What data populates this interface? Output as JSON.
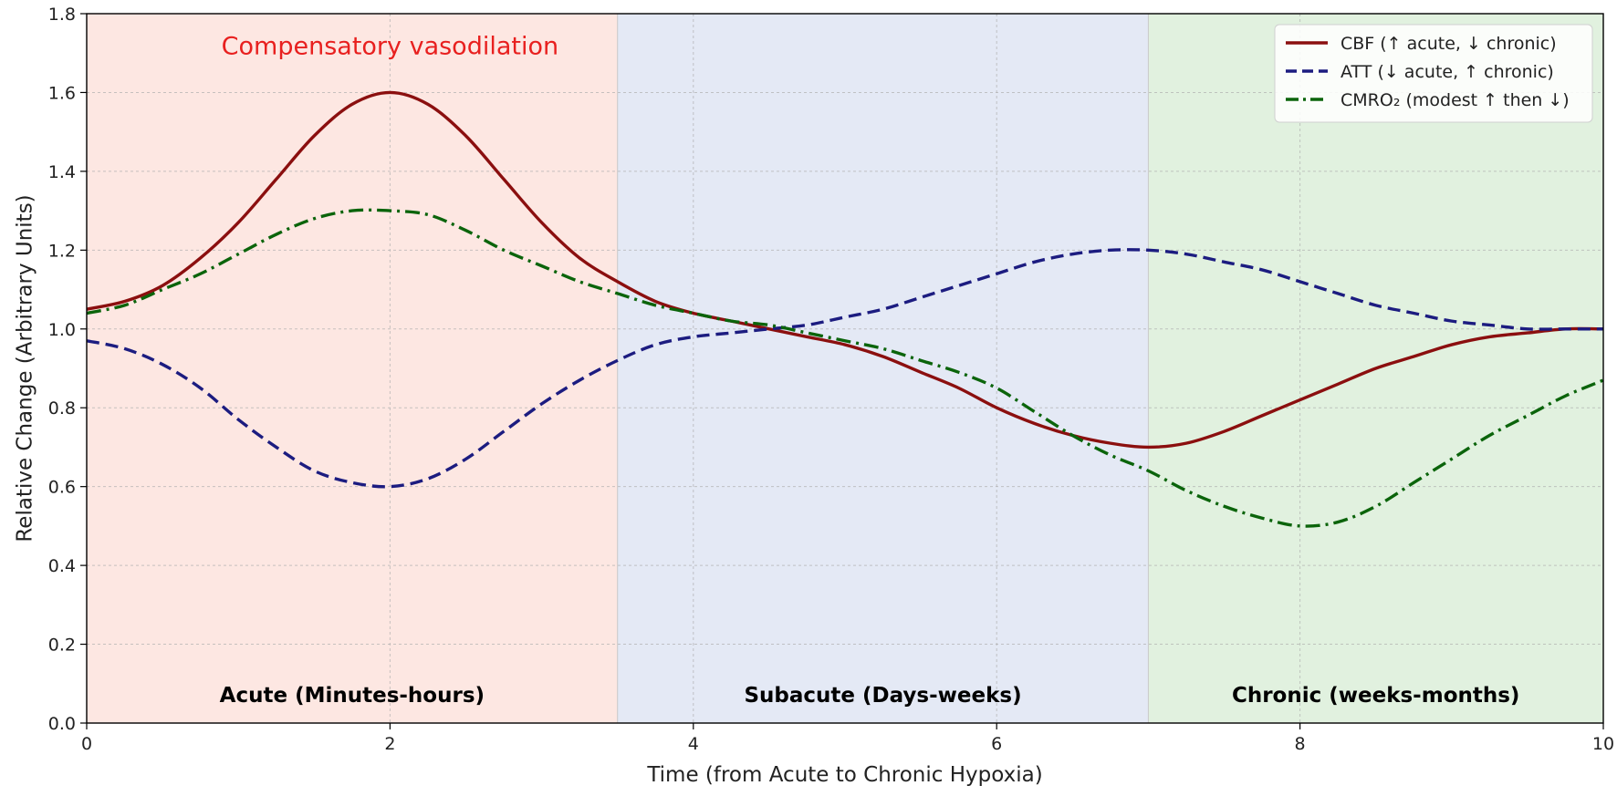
{
  "chart_data": {
    "type": "line",
    "title": "",
    "xlabel": "Time (from Acute to Chronic Hypoxia)",
    "ylabel": "Relative Change (Arbitrary Units)",
    "xlim": [
      0,
      10
    ],
    "ylim": [
      0,
      1.8
    ],
    "x_ticks": [
      0,
      2,
      4,
      6,
      8,
      10
    ],
    "x_tick_labels": [
      "0",
      "2",
      "4",
      "6",
      "8",
      "10"
    ],
    "y_ticks": [
      0.0,
      0.2,
      0.4,
      0.6,
      0.8,
      1.0,
      1.2,
      1.4,
      1.6,
      1.8
    ],
    "y_tick_labels": [
      "0.0",
      "0.2",
      "0.4",
      "0.6",
      "0.8",
      "1.0",
      "1.2",
      "1.4",
      "1.6",
      "1.8"
    ],
    "grid": true,
    "legend_position": "top-right",
    "phases": [
      {
        "label": "Acute (Minutes-hours)",
        "x_start": 0,
        "x_end": 3.5,
        "color": "#fde7e2"
      },
      {
        "label": "Subacute (Days-weeks)",
        "x_start": 3.5,
        "x_end": 7,
        "color": "#e4e9f5"
      },
      {
        "label": "Chronic (weeks-months)",
        "x_start": 7,
        "x_end": 10,
        "color": "#e1f1df"
      }
    ],
    "annotations": [
      {
        "text": "Compensatory vasodilation",
        "x": 2,
        "y": 1.72,
        "color": "#e8201f"
      }
    ],
    "series": [
      {
        "name": "CBF (↑ acute, ↓ chronic)",
        "color": "#8b0f0f",
        "dash": "solid",
        "x": [
          0,
          0.25,
          0.5,
          0.75,
          1.0,
          1.25,
          1.5,
          1.75,
          2.0,
          2.25,
          2.5,
          2.75,
          3.0,
          3.25,
          3.5,
          3.75,
          4.0,
          4.25,
          4.5,
          4.75,
          5.0,
          5.25,
          5.5,
          5.75,
          6.0,
          6.25,
          6.5,
          6.75,
          7.0,
          7.25,
          7.5,
          7.75,
          8.0,
          8.25,
          8.5,
          8.75,
          9.0,
          9.25,
          9.5,
          9.75,
          10.0
        ],
        "y": [
          1.05,
          1.07,
          1.11,
          1.18,
          1.27,
          1.38,
          1.49,
          1.57,
          1.6,
          1.57,
          1.49,
          1.38,
          1.27,
          1.18,
          1.12,
          1.07,
          1.04,
          1.02,
          1.0,
          0.98,
          0.96,
          0.93,
          0.89,
          0.85,
          0.8,
          0.76,
          0.73,
          0.71,
          0.7,
          0.71,
          0.74,
          0.78,
          0.82,
          0.86,
          0.9,
          0.93,
          0.96,
          0.98,
          0.99,
          1.0,
          1.0
        ]
      },
      {
        "name": "ATT (↓ acute, ↑ chronic)",
        "color": "#1c1c80",
        "dash": "dashed",
        "x": [
          0,
          0.25,
          0.5,
          0.75,
          1.0,
          1.25,
          1.5,
          1.75,
          2.0,
          2.25,
          2.5,
          2.75,
          3.0,
          3.25,
          3.5,
          3.75,
          4.0,
          4.25,
          4.5,
          4.75,
          5.0,
          5.25,
          5.5,
          5.75,
          6.0,
          6.25,
          6.5,
          6.75,
          7.0,
          7.25,
          7.5,
          7.75,
          8.0,
          8.25,
          8.5,
          8.75,
          9.0,
          9.25,
          9.5,
          9.75,
          10.0
        ],
        "y": [
          0.97,
          0.95,
          0.91,
          0.85,
          0.77,
          0.7,
          0.64,
          0.61,
          0.6,
          0.62,
          0.67,
          0.74,
          0.81,
          0.87,
          0.92,
          0.96,
          0.98,
          0.99,
          1.0,
          1.01,
          1.03,
          1.05,
          1.08,
          1.11,
          1.14,
          1.17,
          1.19,
          1.2,
          1.2,
          1.19,
          1.17,
          1.15,
          1.12,
          1.09,
          1.06,
          1.04,
          1.02,
          1.01,
          1.0,
          1.0,
          1.0
        ]
      },
      {
        "name": "CMRO₂ (modest ↑ then ↓)",
        "color": "#0b640b",
        "dash": "dashdot",
        "x": [
          0,
          0.25,
          0.5,
          0.75,
          1.0,
          1.25,
          1.5,
          1.75,
          2.0,
          2.25,
          2.5,
          2.75,
          3.0,
          3.25,
          3.5,
          3.75,
          4.0,
          4.25,
          4.5,
          4.75,
          5.0,
          5.25,
          5.5,
          5.75,
          6.0,
          6.25,
          6.5,
          6.75,
          7.0,
          7.25,
          7.5,
          7.75,
          8.0,
          8.25,
          8.5,
          8.75,
          9.0,
          9.25,
          9.5,
          9.75,
          10.0
        ],
        "y": [
          1.04,
          1.06,
          1.1,
          1.14,
          1.19,
          1.24,
          1.28,
          1.3,
          1.3,
          1.29,
          1.25,
          1.2,
          1.16,
          1.12,
          1.09,
          1.06,
          1.04,
          1.02,
          1.01,
          0.99,
          0.97,
          0.95,
          0.92,
          0.89,
          0.85,
          0.79,
          0.73,
          0.68,
          0.64,
          0.59,
          0.55,
          0.52,
          0.5,
          0.51,
          0.55,
          0.61,
          0.67,
          0.73,
          0.78,
          0.83,
          0.87
        ]
      }
    ]
  }
}
